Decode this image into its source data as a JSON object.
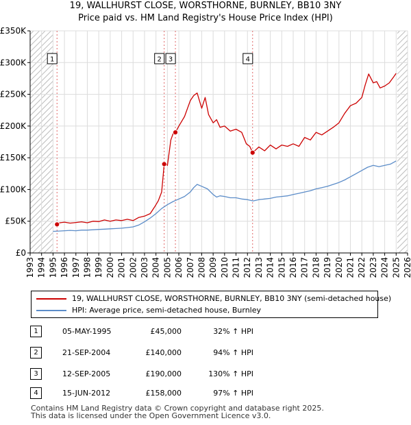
{
  "header": {
    "title_line1": "19, WALLHURST CLOSE, WORSTHORNE, BURNLEY, BB10 3NY",
    "title_line2": "Price paid vs. HM Land Registry's House Price Index (HPI)"
  },
  "colors": {
    "property": "#cc0000",
    "hpi": "#5b8cc8",
    "hatch": "#bbbbbb",
    "vline": "#e06666",
    "grid": "#dcdcdc"
  },
  "chart_data": {
    "type": "line",
    "xlim": [
      1993,
      2026
    ],
    "ylim": [
      0,
      350000
    ],
    "y_ticks": [
      0,
      50000,
      100000,
      150000,
      200000,
      250000,
      300000,
      350000
    ],
    "y_tick_labels": [
      "£0",
      "£50K",
      "£100K",
      "£150K",
      "£200K",
      "£250K",
      "£300K",
      "£350K"
    ],
    "x_ticks": [
      1993,
      1994,
      1995,
      1996,
      1997,
      1998,
      1999,
      2000,
      2001,
      2002,
      2003,
      2004,
      2005,
      2006,
      2007,
      2008,
      2009,
      2010,
      2011,
      2012,
      2013,
      2014,
      2015,
      2016,
      2017,
      2018,
      2019,
      2020,
      2021,
      2022,
      2023,
      2024,
      2025,
      2026
    ],
    "x_tick_labels": [
      "1993",
      "1994",
      "1995",
      "1996",
      "1997",
      "1998",
      "1999",
      "2000",
      "2001",
      "2002",
      "2003",
      "2004",
      "2005",
      "2006",
      "2007",
      "2008",
      "2009",
      "2010",
      "2011",
      "2012",
      "2013",
      "2014",
      "2015",
      "2016",
      "2017",
      "2018",
      "2019",
      "2020",
      "2021",
      "2022",
      "2023",
      "2024",
      "2025",
      "2026"
    ],
    "hatched_ranges": [
      [
        1993,
        1995.0
      ],
      [
        2025.1,
        2026
      ]
    ],
    "series": [
      {
        "name": "19, WALLHURST CLOSE, WORSTHORNE, BURNLEY, BB10 3NY (semi-detached house)",
        "color": "#cc0000",
        "x": [
          1995.35,
          1995.6,
          1996.0,
          1996.5,
          1997.0,
          1997.5,
          1998.0,
          1998.5,
          1999.0,
          1999.5,
          2000.0,
          2000.5,
          2001.0,
          2001.5,
          2002.0,
          2002.5,
          2003.0,
          2003.5,
          2003.9,
          2004.2,
          2004.5,
          2004.72,
          2004.8,
          2005.0,
          2005.3,
          2005.5,
          2005.7,
          2006.0,
          2006.5,
          2007.0,
          2007.3,
          2007.6,
          2008.0,
          2008.3,
          2008.6,
          2009.0,
          2009.3,
          2009.6,
          2010.0,
          2010.5,
          2011.0,
          2011.5,
          2011.9,
          2012.2,
          2012.45,
          2012.7,
          2013.0,
          2013.5,
          2014.0,
          2014.5,
          2015.0,
          2015.5,
          2016.0,
          2016.5,
          2017.0,
          2017.5,
          2018.0,
          2018.5,
          2019.0,
          2019.5,
          2020.0,
          2020.5,
          2021.0,
          2021.5,
          2022.0,
          2022.3,
          2022.6,
          2023.0,
          2023.3,
          2023.6,
          2024.0,
          2024.4,
          2024.8,
          2025.0
        ],
        "values": [
          45000,
          47500,
          48500,
          47000,
          48000,
          49000,
          47500,
          50000,
          49500,
          52000,
          50000,
          52000,
          51000,
          53000,
          51000,
          56000,
          58000,
          62000,
          73000,
          82000,
          96000,
          140000,
          142000,
          138000,
          178000,
          188000,
          190000,
          200000,
          215000,
          240000,
          248000,
          252000,
          228000,
          245000,
          218000,
          205000,
          210000,
          198000,
          200000,
          192000,
          195000,
          190000,
          172000,
          168000,
          158000,
          162000,
          167000,
          161000,
          170000,
          164000,
          170000,
          168000,
          172000,
          168000,
          182000,
          178000,
          190000,
          186000,
          192000,
          198000,
          205000,
          220000,
          232000,
          236000,
          245000,
          265000,
          282000,
          268000,
          270000,
          260000,
          263000,
          268000,
          278000,
          283000
        ]
      },
      {
        "name": "HPI: Average price, semi-detached house, Burnley",
        "color": "#5b8cc8",
        "x": [
          1995.0,
          1995.5,
          1996.0,
          1996.5,
          1997.0,
          1997.5,
          1998.0,
          1998.5,
          1999.0,
          1999.5,
          2000.0,
          2000.5,
          2001.0,
          2001.5,
          2002.0,
          2002.5,
          2003.0,
          2003.5,
          2004.0,
          2004.5,
          2005.0,
          2005.5,
          2006.0,
          2006.5,
          2007.0,
          2007.3,
          2007.6,
          2008.0,
          2008.5,
          2009.0,
          2009.3,
          2009.6,
          2010.0,
          2010.5,
          2011.0,
          2011.5,
          2012.0,
          2012.5,
          2013.0,
          2013.5,
          2014.0,
          2014.5,
          2015.0,
          2015.5,
          2016.0,
          2016.5,
          2017.0,
          2017.5,
          2018.0,
          2018.5,
          2019.0,
          2019.5,
          2020.0,
          2020.5,
          2021.0,
          2021.5,
          2022.0,
          2022.5,
          2023.0,
          2023.5,
          2024.0,
          2024.5,
          2025.0
        ],
        "values": [
          34000,
          34500,
          35000,
          35500,
          35000,
          36000,
          36000,
          36500,
          37000,
          37500,
          38000,
          38500,
          39000,
          40000,
          41000,
          44000,
          49000,
          55000,
          62000,
          70000,
          76000,
          81000,
          85000,
          89000,
          96000,
          103000,
          108000,
          105000,
          101000,
          92000,
          88000,
          90000,
          89000,
          87000,
          87000,
          85000,
          84000,
          82000,
          84000,
          85000,
          86000,
          88000,
          89000,
          90000,
          92000,
          94000,
          96000,
          98000,
          101000,
          103000,
          105000,
          108000,
          111000,
          115000,
          120000,
          125000,
          130000,
          135000,
          138000,
          136000,
          138000,
          140000,
          145000
        ]
      }
    ],
    "sale_markers": [
      {
        "label": "1",
        "x": 1995.35,
        "y": 45000
      },
      {
        "label": "2",
        "x": 2004.72,
        "y": 140000
      },
      {
        "label": "3",
        "x": 2005.7,
        "y": 190000
      },
      {
        "label": "4",
        "x": 2012.45,
        "y": 158000
      }
    ]
  },
  "legend": {
    "property_label": "19, WALLHURST CLOSE, WORSTHORNE, BURNLEY, BB10 3NY (semi-detached house)",
    "hpi_label": "HPI: Average price, semi-detached house, Burnley"
  },
  "sales": [
    {
      "num": "1",
      "date": "05-MAY-1995",
      "price": "£45,000",
      "hpi": "32% ↑ HPI"
    },
    {
      "num": "2",
      "date": "21-SEP-2004",
      "price": "£140,000",
      "hpi": "94% ↑ HPI"
    },
    {
      "num": "3",
      "date": "12-SEP-2005",
      "price": "£190,000",
      "hpi": "130% ↑ HPI"
    },
    {
      "num": "4",
      "date": "15-JUN-2012",
      "price": "£158,000",
      "hpi": "97% ↑ HPI"
    }
  ],
  "footer": {
    "line1": "Contains HM Land Registry data © Crown copyright and database right 2025.",
    "line2": "This data is licensed under the Open Government Licence v3.0."
  }
}
